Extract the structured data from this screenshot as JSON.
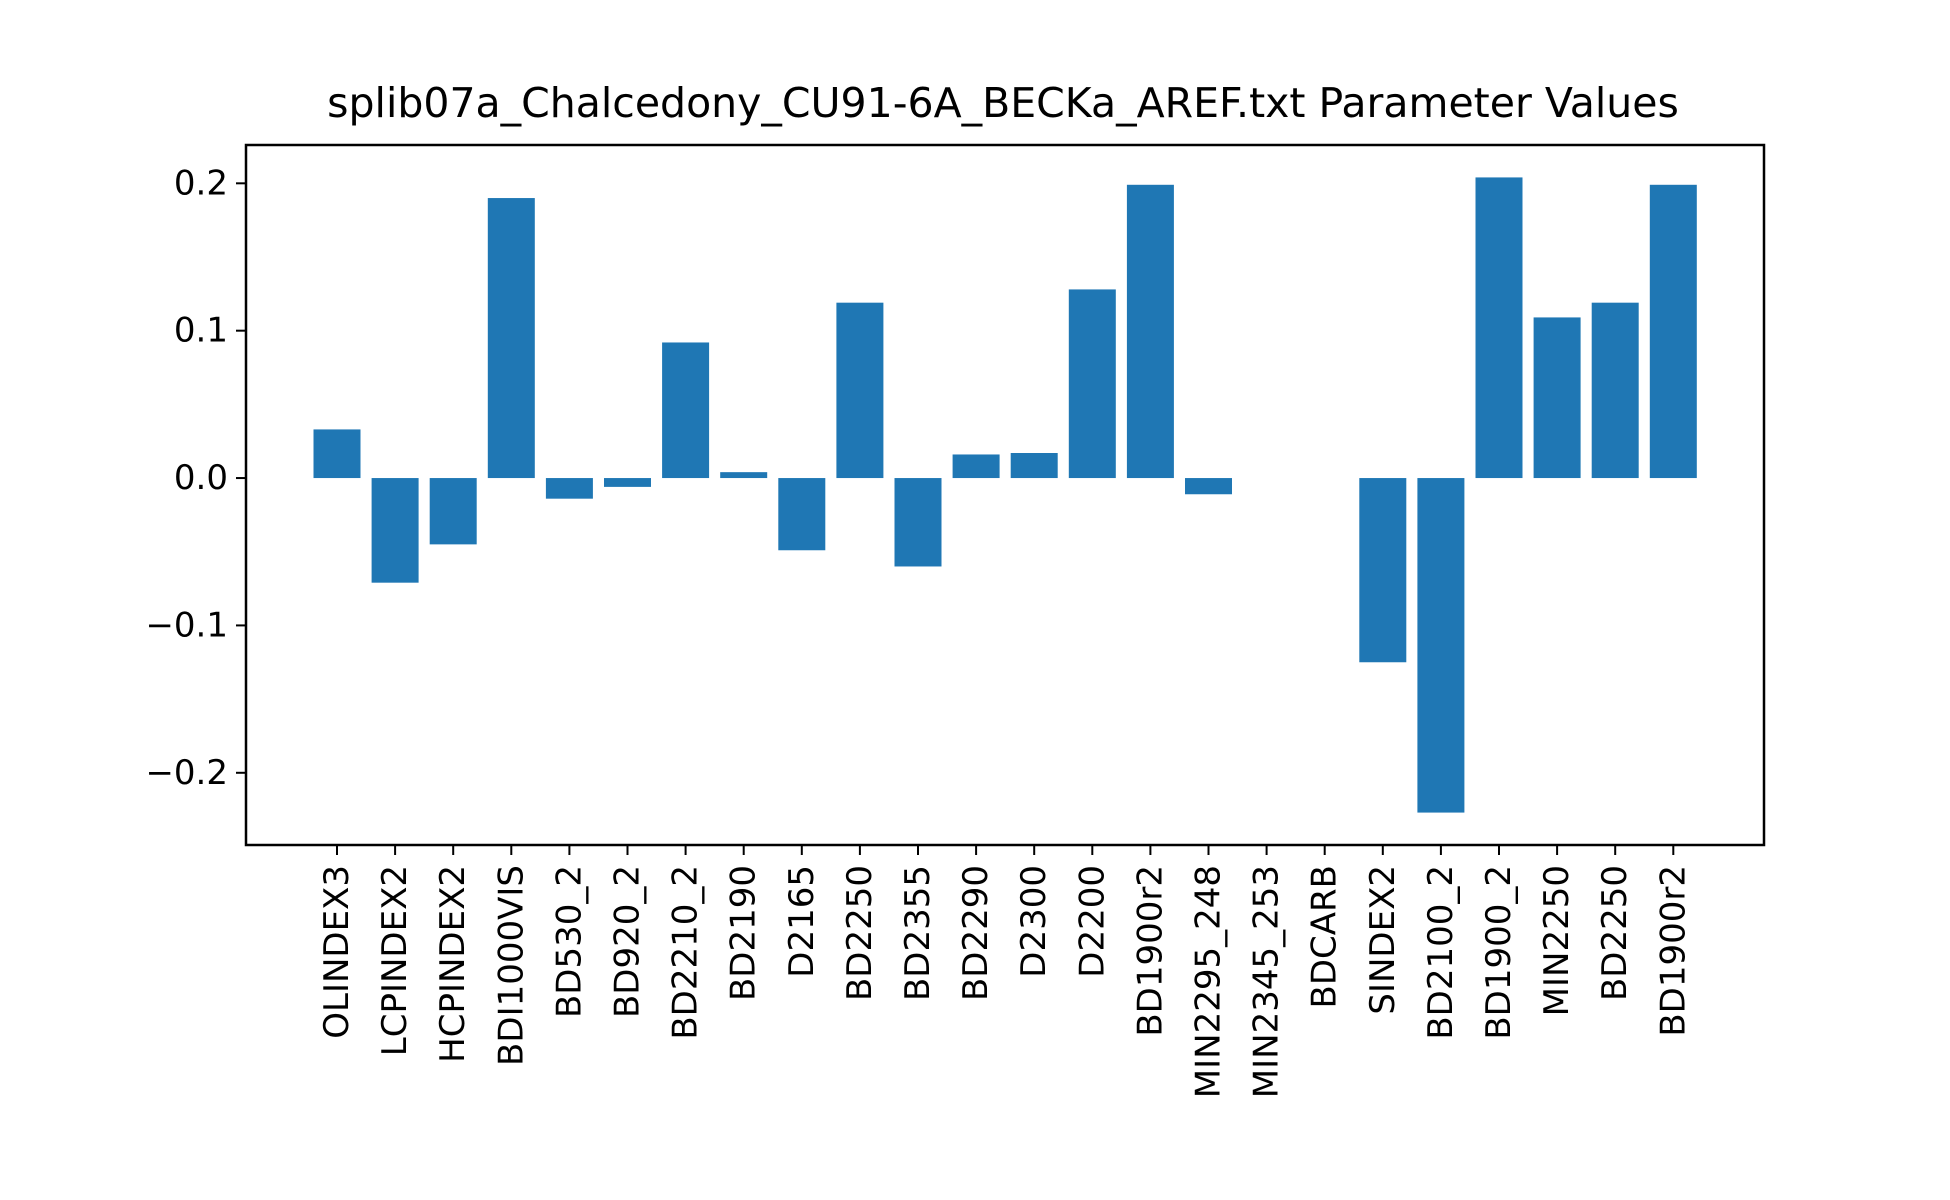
{
  "chart_data": {
    "type": "bar",
    "title": "splib07a_Chalcedony_CU91-6A_BECKa_AREF.txt Parameter Values",
    "xlabel": "",
    "ylabel": "",
    "categories": [
      "OLINDEX3",
      "LCPINDEX2",
      "HCPINDEX2",
      "BDI1000VIS",
      "BD530_2",
      "BD920_2",
      "BD2210_2",
      "BD2190",
      "D2165",
      "BD2250",
      "BD2355",
      "BD2290",
      "D2300",
      "D2200",
      "BD1900r2",
      "MIN2295_248",
      "MIN2345_253",
      "BDCARB",
      "SINDEX2",
      "BD2100_2",
      "BD1900_2",
      "MIN2250",
      "BD2250",
      "BD1900r2"
    ],
    "values": [
      0.033,
      -0.071,
      -0.045,
      0.19,
      -0.014,
      -0.006,
      0.092,
      0.004,
      -0.049,
      0.119,
      -0.06,
      0.016,
      0.017,
      0.128,
      0.199,
      -0.011,
      0.0,
      0.0,
      -0.125,
      -0.227,
      0.204,
      0.109,
      0.119,
      0.199
    ],
    "ylim": [
      -0.249,
      0.226
    ],
    "yticks": [
      -0.2,
      -0.1,
      0.0,
      0.1,
      0.2
    ],
    "ytick_labels": [
      "−0.2",
      "−0.1",
      "0.0",
      "0.1",
      "0.2"
    ],
    "bar_color": "#1f77b4",
    "grid": false,
    "legend": "none"
  }
}
